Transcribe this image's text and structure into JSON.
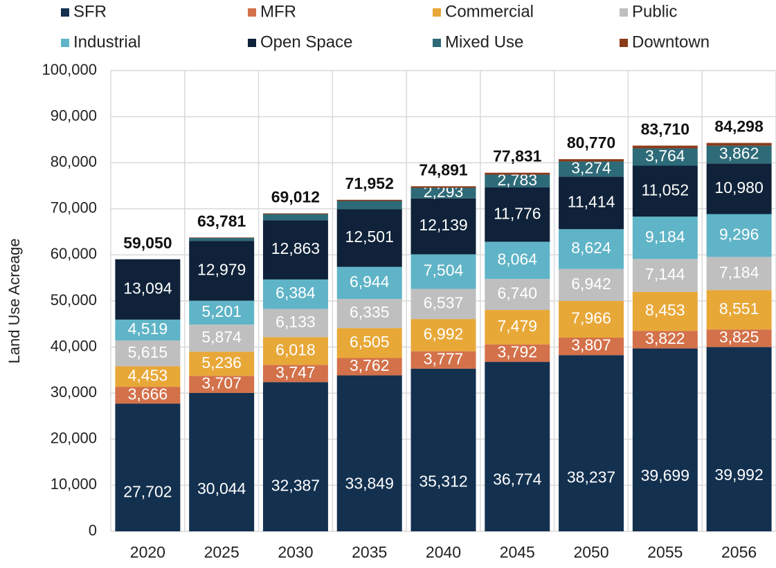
{
  "chart_data": {
    "type": "stacked-bar",
    "y_label": "Land Use Acreage",
    "categories": [
      "2020",
      "2025",
      "2030",
      "2035",
      "2040",
      "2045",
      "2050",
      "2055",
      "2056"
    ],
    "series": [
      {
        "name": "SFR",
        "color": "#13304f",
        "values": [
          27702,
          30044,
          32387,
          33849,
          35312,
          36774,
          38237,
          39699,
          39992
        ],
        "value_labels": [
          "27,702",
          "30,044",
          "32,387",
          "33,849",
          "35,312",
          "36,774",
          "38,237",
          "39,699",
          "39,992"
        ]
      },
      {
        "name": "MFR",
        "color": "#d3714a",
        "values": [
          3666,
          3707,
          3747,
          3762,
          3777,
          3792,
          3807,
          3822,
          3825
        ],
        "value_labels": [
          "3,666",
          "3,707",
          "3,747",
          "3,762",
          "3,777",
          "3,792",
          "3,807",
          "3,822",
          "3,825"
        ]
      },
      {
        "name": "Commercial",
        "color": "#e8a838",
        "values": [
          4453,
          5236,
          6018,
          6505,
          6992,
          7479,
          7966,
          8453,
          8551
        ],
        "value_labels": [
          "4,453",
          "5,236",
          "6,018",
          "6,505",
          "6,992",
          "7,479",
          "7,966",
          "8,453",
          "8,551"
        ]
      },
      {
        "name": "Public",
        "color": "#bfbfbf",
        "values": [
          5615,
          5874,
          6133,
          6335,
          6537,
          6740,
          6942,
          7144,
          7184
        ],
        "value_labels": [
          "5,615",
          "5,874",
          "6,133",
          "6,335",
          "6,537",
          "6,740",
          "6,942",
          "7,144",
          "7,184"
        ]
      },
      {
        "name": "Industrial",
        "color": "#5fb4c7",
        "values": [
          4519,
          5201,
          6384,
          6944,
          7504,
          8064,
          8624,
          9184,
          9296
        ],
        "value_labels": [
          "4,519",
          "5,201",
          "6,384",
          "6,944",
          "7,504",
          "8,064",
          "8,624",
          "9,184",
          "9,296"
        ]
      },
      {
        "name": "Open Space",
        "color": "#0f2239",
        "values": [
          13094,
          12979,
          12863,
          12501,
          12139,
          11776,
          11414,
          11052,
          10980
        ],
        "value_labels": [
          "13,094",
          "12,979",
          "12,863",
          "12,501",
          "12,139",
          "11,776",
          "11,414",
          "11,052",
          "10,980"
        ]
      },
      {
        "name": "Mixed Use",
        "color": "#2e6b78",
        "values": [
          0,
          640,
          1300,
          1800,
          2293,
          2783,
          3274,
          3764,
          3862
        ],
        "value_labels": [
          null,
          null,
          null,
          null,
          "2,293",
          "2,783",
          "3,274",
          "3,764",
          "3,862"
        ]
      },
      {
        "name": "Downtown",
        "color": "#8b3a1a",
        "values": [
          1,
          100,
          180,
          256,
          337,
          423,
          506,
          592,
          608
        ]
      }
    ],
    "totals": [
      {
        "value": 59050,
        "label": "59,050"
      },
      {
        "value": 63781,
        "label": "63,781"
      },
      {
        "value": 69012,
        "label": "69,012"
      },
      {
        "value": 71952,
        "label": "71,952"
      },
      {
        "value": 74891,
        "label": "74,891"
      },
      {
        "value": 77831,
        "label": "77,831"
      },
      {
        "value": 80770,
        "label": "80,770"
      },
      {
        "value": 83710,
        "label": "83,710"
      },
      {
        "value": 84298,
        "label": "84,298"
      }
    ],
    "ylim": [
      0,
      100000
    ],
    "yticks": [
      0,
      {
        "value": 10000,
        "label": "10,000"
      },
      {
        "value": 20000,
        "label": "20,000"
      },
      {
        "value": 30000,
        "label": "30,000"
      },
      {
        "value": 40000,
        "label": "40,000"
      },
      {
        "value": 50000,
        "label": "50,000"
      },
      {
        "value": 60000,
        "label": "60,000"
      },
      {
        "value": 70000,
        "label": "70,000"
      },
      {
        "value": 80000,
        "label": "80,000"
      },
      {
        "value": 90000,
        "label": "90,000"
      },
      {
        "value": 100000,
        "label": "100,000"
      }
    ],
    "grid": true
  }
}
